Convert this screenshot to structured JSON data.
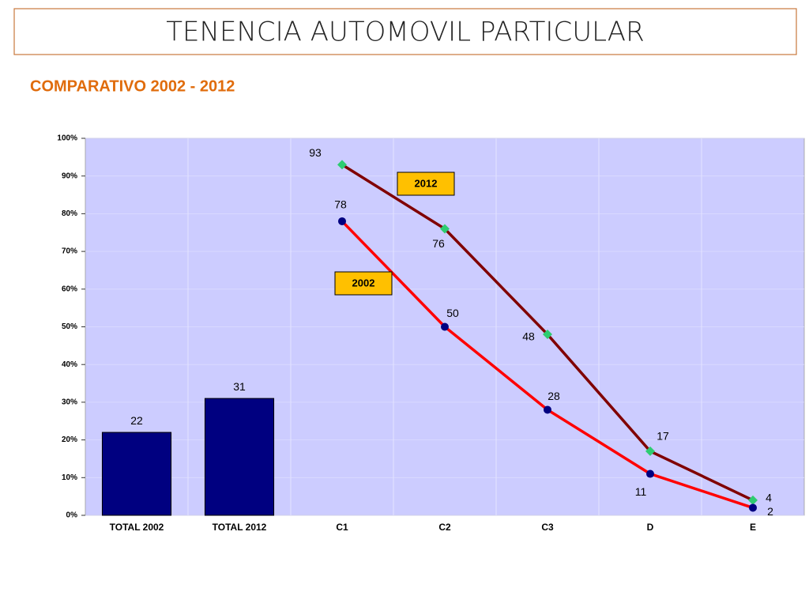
{
  "chart_data": {
    "type": "combo",
    "title": "TENENCIA   AUTOMOVIL  PARTICULAR",
    "subtitle": "COMPARATIVO 2002 - 2012",
    "categories": [
      "TOTAL 2002",
      "TOTAL 2012",
      "C1",
      "C2",
      "C3",
      "D",
      "E"
    ],
    "series": [
      {
        "type": "bar",
        "color": "#000080",
        "values": [
          22,
          31,
          null,
          null,
          null,
          null,
          null
        ]
      },
      {
        "name": "2012",
        "type": "line",
        "color": "#800000",
        "marker_color": "#2ecc71",
        "marker": "diamond",
        "values": [
          null,
          null,
          93,
          76,
          48,
          17,
          4
        ]
      },
      {
        "name": "2002",
        "type": "line",
        "color": "#ff0000",
        "marker_color": "#000080",
        "marker": "circle",
        "values": [
          null,
          null,
          78,
          50,
          28,
          11,
          2
        ]
      }
    ],
    "ylim": [
      0,
      100
    ],
    "yticks": [
      {
        "value": 0,
        "label": "0%"
      },
      {
        "value": 10,
        "label": "10%"
      },
      {
        "value": 20,
        "label": "20%"
      },
      {
        "value": 30,
        "label": "30%"
      },
      {
        "value": 40,
        "label": "40%"
      },
      {
        "value": 50,
        "label": "50%"
      },
      {
        "value": 60,
        "label": "60%"
      },
      {
        "value": 70,
        "label": "70%"
      },
      {
        "value": 80,
        "label": "80%"
      },
      {
        "value": 90,
        "label": "90%"
      },
      {
        "value": 100,
        "label": "100%"
      }
    ],
    "grid": true,
    "plot_background": "#ccccff"
  }
}
